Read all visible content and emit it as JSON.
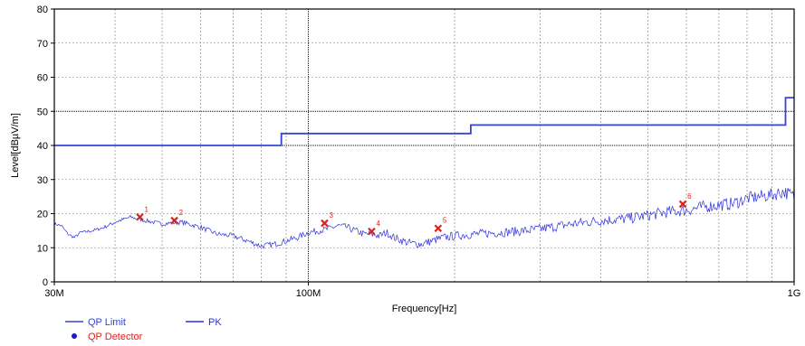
{
  "chart_data": {
    "type": "line",
    "xlabel": "Frequency[Hz]",
    "ylabel": "Level[dBµV/m]",
    "xscale": "log",
    "xlim": [
      30000000,
      1000000000
    ],
    "ylim": [
      0,
      80
    ],
    "yticks": [
      0,
      10,
      20,
      30,
      40,
      50,
      60,
      70,
      80
    ],
    "xtick_labels": [
      {
        "value": 30000000,
        "label": "30M"
      },
      {
        "value": 100000000,
        "label": "100M"
      },
      {
        "value": 1000000000,
        "label": "1G"
      }
    ],
    "grid": true,
    "colors": {
      "limit": "#3344d6",
      "pk": "#2b2ee0",
      "marker": "#e0201a",
      "detector_dot": "#1a1acc",
      "detector_text": "#e0201a"
    },
    "series": [
      {
        "name": "QP Limit",
        "kind": "step",
        "x": [
          30000000,
          88000000,
          88000000,
          216000000,
          216000000,
          960000000,
          960000000,
          1000000000
        ],
        "y": [
          40,
          40,
          43.5,
          43.5,
          46,
          46,
          54,
          54
        ]
      },
      {
        "name": "PK",
        "kind": "line",
        "x": [
          30000000,
          31000000,
          32000000,
          33000000,
          34000000,
          36000000,
          38000000,
          40000000,
          43000000,
          46000000,
          50000000,
          55000000,
          60000000,
          65000000,
          70000000,
          75000000,
          80000000,
          85000000,
          90000000,
          95000000,
          100000000,
          105000000,
          110000000,
          115000000,
          120000000,
          125000000,
          130000000,
          135000000,
          140000000,
          145000000,
          150000000,
          160000000,
          170000000,
          180000000,
          190000000,
          200000000,
          220000000,
          250000000,
          280000000,
          300000000,
          350000000,
          400000000,
          450000000,
          500000000,
          550000000,
          600000000,
          650000000,
          700000000,
          750000000,
          800000000,
          850000000,
          900000000,
          950000000,
          1000000000
        ],
        "y": [
          17,
          16.5,
          14,
          13,
          14.5,
          15,
          16,
          17.5,
          19,
          18,
          17,
          17.5,
          16,
          14,
          13.5,
          12,
          10.5,
          11,
          12,
          13,
          14.5,
          15,
          15.5,
          16.5,
          16,
          15,
          14,
          14,
          13.5,
          14.5,
          13,
          11.5,
          11,
          12,
          13,
          13.5,
          14,
          14.5,
          15,
          15.5,
          17,
          18,
          18.5,
          19.5,
          20.5,
          21,
          22,
          22.5,
          23,
          24.5,
          25,
          25.5,
          26.5,
          25
        ]
      }
    ],
    "markers": [
      {
        "label": "1",
        "x": 45000000,
        "y": 19
      },
      {
        "label": "2",
        "x": 53000000,
        "y": 18
      },
      {
        "label": "3",
        "x": 108000000,
        "y": 17.2
      },
      {
        "label": "4",
        "x": 135000000,
        "y": 14.8
      },
      {
        "label": "5",
        "x": 185000000,
        "y": 15.7
      },
      {
        "label": "6",
        "x": 590000000,
        "y": 22.8
      }
    ],
    "legend": {
      "placement": "bottom-left",
      "items": [
        "QP Limit",
        "PK",
        "QP Detector"
      ]
    }
  }
}
